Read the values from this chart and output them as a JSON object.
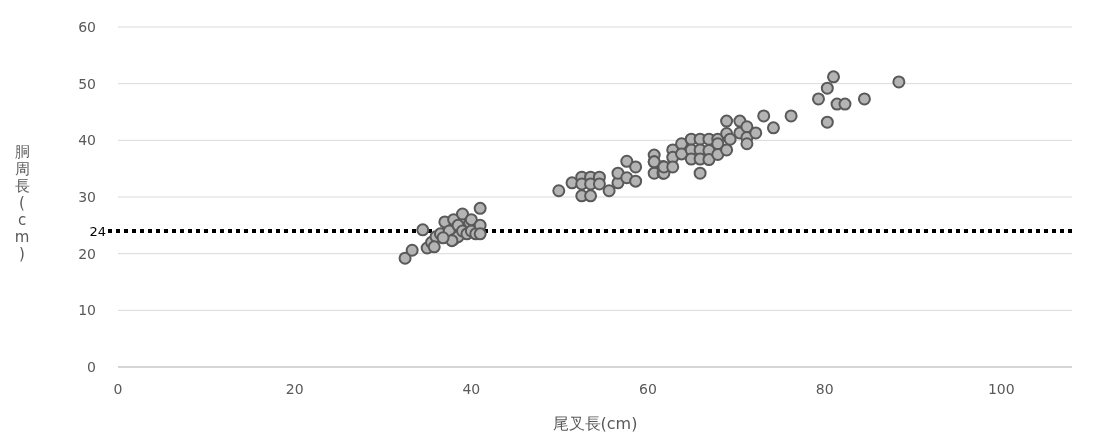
{
  "chart_data": {
    "type": "scatter",
    "xlabel": "尾叉長(cm)",
    "ylabel": "胴周長(cm)",
    "x": [
      32.5,
      33.3,
      34.5,
      35,
      35.5,
      36,
      35.8,
      36.5,
      37,
      37.5,
      38,
      38,
      38.5,
      38.5,
      39,
      39,
      39.5,
      39.8,
      40,
      40,
      40.5,
      41,
      41,
      41,
      37.8,
      36.8,
      49.9,
      51.4,
      52.5,
      52.5,
      52.5,
      53.5,
      53.5,
      53.5,
      54.5,
      54.5,
      55.6,
      56.6,
      56.6,
      57.6,
      57.6,
      58.6,
      58.6,
      60.7,
      60.7,
      60.7,
      61.7,
      61.7,
      60.7,
      61.8,
      61.8,
      62.8,
      62.8,
      62.8,
      63.8,
      63.8,
      64.9,
      64.9,
      64.9,
      65.9,
      65.9,
      65.9,
      65.9,
      66.9,
      66.9,
      66.9,
      67.9,
      67.9,
      67.9,
      68.9,
      68.9,
      68.9,
      69.3,
      70.4,
      70.4,
      71.2,
      71.2,
      71.2,
      72.2,
      73.1,
      74.2,
      76.2,
      79.3,
      80.3,
      81.0,
      80.3,
      81.4,
      82.3,
      84.5,
      88.4
    ],
    "values": [
      19.2,
      20.6,
      24.2,
      21,
      22,
      23,
      21.2,
      23.5,
      25.6,
      24,
      22.5,
      26,
      25,
      23,
      27,
      24,
      23.5,
      25.5,
      24,
      26,
      23.5,
      25,
      28,
      23.5,
      22.3,
      22.8,
      31.1,
      32.5,
      33.5,
      32.3,
      30.2,
      33.5,
      32.3,
      30.2,
      33.5,
      32.3,
      31.1,
      32.5,
      34.2,
      36.3,
      33.4,
      35.3,
      32.8,
      37.4,
      36.2,
      34.2,
      34.2,
      35.4,
      36.2,
      34.2,
      35.3,
      38.3,
      37,
      35.3,
      39.4,
      37.6,
      40.2,
      38.3,
      36.7,
      40.2,
      38.3,
      36.7,
      34.2,
      40.2,
      38.2,
      36.6,
      40.2,
      39.4,
      37.5,
      43.4,
      41.2,
      38.3,
      40.2,
      43.4,
      41.3,
      42.4,
      40.5,
      39.4,
      41.3,
      44.3,
      42.2,
      44.3,
      47.3,
      49.2,
      51.2,
      43.2,
      46.4,
      46.4,
      47.3,
      50.3
    ],
    "color": "#b4b4b4",
    "marker": "circle",
    "xlim": [
      0,
      108
    ],
    "ylim": [
      0,
      60
    ],
    "xticks": [
      0,
      20,
      40,
      60,
      80,
      100
    ],
    "yticks": [
      0,
      10,
      20,
      30,
      40,
      50,
      60
    ],
    "grid": "y",
    "ref_lines": [
      {
        "axis": "y",
        "value": 24,
        "label": "24",
        "color": "#000000",
        "line_style": "dotted"
      }
    ]
  }
}
